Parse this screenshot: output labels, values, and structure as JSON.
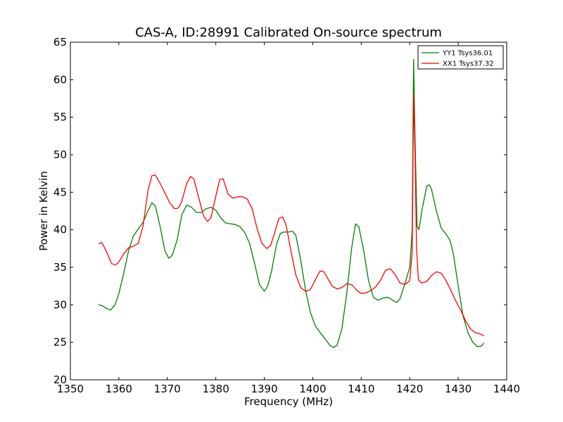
{
  "chart_data": {
    "type": "line",
    "title": "CAS-A, ID:28991 Calibrated On-source spectrum",
    "xlabel": "Frequency (MHz)",
    "ylabel": "Power in Kelvin",
    "xlim": [
      1350,
      1440
    ],
    "ylim": [
      20,
      65
    ],
    "xticks": [
      1350,
      1360,
      1370,
      1380,
      1390,
      1400,
      1410,
      1420,
      1430,
      1440
    ],
    "yticks": [
      20,
      25,
      30,
      35,
      40,
      45,
      50,
      55,
      60,
      65
    ],
    "grid": false,
    "legend_position": "top-right",
    "series": [
      {
        "name": "YY1 Tsys36.01",
        "color": "#008000",
        "points": [
          [
            1355.8,
            30.0
          ],
          [
            1356.5,
            29.9
          ],
          [
            1357.5,
            29.5
          ],
          [
            1358.3,
            29.3
          ],
          [
            1359.2,
            30.0
          ],
          [
            1360.0,
            31.5
          ],
          [
            1361.0,
            34.2
          ],
          [
            1362.0,
            37.2
          ],
          [
            1363.0,
            39.2
          ],
          [
            1364.0,
            40.1
          ],
          [
            1365.0,
            41.0
          ],
          [
            1366.0,
            42.5
          ],
          [
            1366.8,
            43.6
          ],
          [
            1367.5,
            43.2
          ],
          [
            1368.5,
            40.5
          ],
          [
            1369.5,
            37.2
          ],
          [
            1370.3,
            36.2
          ],
          [
            1371.0,
            36.6
          ],
          [
            1372.0,
            38.6
          ],
          [
            1373.0,
            42.0
          ],
          [
            1374.0,
            43.3
          ],
          [
            1375.0,
            43.0
          ],
          [
            1376.0,
            42.3
          ],
          [
            1377.0,
            42.3
          ],
          [
            1378.0,
            42.8
          ],
          [
            1379.0,
            43.0
          ],
          [
            1380.0,
            42.6
          ],
          [
            1381.0,
            41.6
          ],
          [
            1382.0,
            40.9
          ],
          [
            1383.0,
            40.8
          ],
          [
            1384.0,
            40.7
          ],
          [
            1385.0,
            40.4
          ],
          [
            1386.0,
            39.6
          ],
          [
            1387.0,
            38.1
          ],
          [
            1388.0,
            35.5
          ],
          [
            1389.0,
            32.7
          ],
          [
            1390.0,
            31.8
          ],
          [
            1390.7,
            32.5
          ],
          [
            1391.5,
            34.5
          ],
          [
            1392.5,
            38.0
          ],
          [
            1393.3,
            39.5
          ],
          [
            1394.0,
            39.7
          ],
          [
            1395.0,
            39.7
          ],
          [
            1395.8,
            39.8
          ],
          [
            1396.5,
            39.3
          ],
          [
            1397.5,
            36.0
          ],
          [
            1398.5,
            32.0
          ],
          [
            1399.5,
            29.0
          ],
          [
            1400.5,
            27.2
          ],
          [
            1401.5,
            26.3
          ],
          [
            1402.5,
            25.5
          ],
          [
            1403.5,
            24.6
          ],
          [
            1404.3,
            24.3
          ],
          [
            1405.0,
            24.6
          ],
          [
            1406.0,
            26.8
          ],
          [
            1407.0,
            31.5
          ],
          [
            1408.0,
            37.5
          ],
          [
            1408.8,
            40.8
          ],
          [
            1409.5,
            40.4
          ],
          [
            1410.5,
            37.2
          ],
          [
            1411.5,
            33.2
          ],
          [
            1412.5,
            31.0
          ],
          [
            1413.5,
            30.6
          ],
          [
            1414.5,
            30.9
          ],
          [
            1415.5,
            31.0
          ],
          [
            1416.5,
            30.6
          ],
          [
            1417.3,
            30.3
          ],
          [
            1418.0,
            30.8
          ],
          [
            1419.0,
            32.8
          ],
          [
            1420.0,
            35.0
          ],
          [
            1420.5,
            40.0
          ],
          [
            1420.8,
            62.7
          ],
          [
            1421.1,
            52.0
          ],
          [
            1421.5,
            40.5
          ],
          [
            1421.9,
            40.0
          ],
          [
            1422.5,
            42.5
          ],
          [
            1423.5,
            45.8
          ],
          [
            1424.0,
            46.0
          ],
          [
            1424.5,
            45.4
          ],
          [
            1425.5,
            42.5
          ],
          [
            1426.5,
            40.2
          ],
          [
            1427.5,
            39.4
          ],
          [
            1428.3,
            38.6
          ],
          [
            1429.0,
            36.8
          ],
          [
            1430.0,
            32.5
          ],
          [
            1431.0,
            28.5
          ],
          [
            1432.0,
            26.3
          ],
          [
            1433.0,
            25.0
          ],
          [
            1434.0,
            24.4
          ],
          [
            1434.8,
            24.5
          ],
          [
            1435.3,
            24.9
          ]
        ]
      },
      {
        "name": "XX1 Tsys37.32",
        "color": "#ff0000",
        "points": [
          [
            1355.8,
            38.1
          ],
          [
            1356.5,
            38.3
          ],
          [
            1357.5,
            37.0
          ],
          [
            1358.5,
            35.5
          ],
          [
            1359.3,
            35.3
          ],
          [
            1360.0,
            35.7
          ],
          [
            1361.0,
            36.8
          ],
          [
            1362.0,
            37.6
          ],
          [
            1363.0,
            37.8
          ],
          [
            1364.0,
            38.2
          ],
          [
            1365.0,
            40.5
          ],
          [
            1366.0,
            45.2
          ],
          [
            1366.8,
            47.2
          ],
          [
            1367.5,
            47.3
          ],
          [
            1368.5,
            46.2
          ],
          [
            1369.5,
            44.9
          ],
          [
            1370.5,
            43.6
          ],
          [
            1371.5,
            42.8
          ],
          [
            1372.3,
            42.9
          ],
          [
            1373.0,
            43.8
          ],
          [
            1374.0,
            46.2
          ],
          [
            1374.8,
            47.1
          ],
          [
            1375.5,
            46.7
          ],
          [
            1376.5,
            44.2
          ],
          [
            1377.5,
            41.8
          ],
          [
            1378.3,
            41.1
          ],
          [
            1379.0,
            41.6
          ],
          [
            1380.0,
            44.5
          ],
          [
            1380.8,
            46.7
          ],
          [
            1381.5,
            46.8
          ],
          [
            1382.5,
            44.8
          ],
          [
            1383.5,
            44.2
          ],
          [
            1384.5,
            44.4
          ],
          [
            1385.5,
            44.4
          ],
          [
            1386.5,
            44.1
          ],
          [
            1387.5,
            42.8
          ],
          [
            1388.5,
            40.2
          ],
          [
            1389.5,
            38.2
          ],
          [
            1390.5,
            37.5
          ],
          [
            1391.3,
            37.9
          ],
          [
            1392.0,
            39.3
          ],
          [
            1393.0,
            41.5
          ],
          [
            1393.8,
            41.7
          ],
          [
            1394.5,
            40.6
          ],
          [
            1395.5,
            37.2
          ],
          [
            1396.5,
            34.0
          ],
          [
            1397.5,
            32.3
          ],
          [
            1398.5,
            31.8
          ],
          [
            1399.5,
            32.0
          ],
          [
            1400.5,
            33.3
          ],
          [
            1401.5,
            34.5
          ],
          [
            1402.3,
            34.4
          ],
          [
            1403.0,
            33.6
          ],
          [
            1404.0,
            32.5
          ],
          [
            1405.0,
            32.1
          ],
          [
            1406.0,
            32.3
          ],
          [
            1407.0,
            32.8
          ],
          [
            1408.0,
            32.7
          ],
          [
            1409.0,
            32.0
          ],
          [
            1410.0,
            31.5
          ],
          [
            1411.0,
            31.6
          ],
          [
            1412.0,
            31.9
          ],
          [
            1413.0,
            32.4
          ],
          [
            1414.0,
            33.3
          ],
          [
            1415.0,
            34.6
          ],
          [
            1416.0,
            34.8
          ],
          [
            1417.0,
            34.0
          ],
          [
            1418.0,
            32.9
          ],
          [
            1419.0,
            32.7
          ],
          [
            1420.0,
            33.2
          ],
          [
            1420.5,
            37.0
          ],
          [
            1420.8,
            58.0
          ],
          [
            1421.1,
            50.0
          ],
          [
            1421.4,
            37.5
          ],
          [
            1421.8,
            33.3
          ],
          [
            1422.5,
            32.9
          ],
          [
            1423.5,
            33.1
          ],
          [
            1424.5,
            33.9
          ],
          [
            1425.5,
            34.4
          ],
          [
            1426.5,
            34.2
          ],
          [
            1427.5,
            33.2
          ],
          [
            1428.5,
            31.9
          ],
          [
            1429.5,
            30.5
          ],
          [
            1430.5,
            29.3
          ],
          [
            1431.5,
            27.9
          ],
          [
            1432.5,
            26.8
          ],
          [
            1433.5,
            26.3
          ],
          [
            1434.5,
            26.1
          ],
          [
            1435.3,
            25.9
          ]
        ]
      }
    ]
  }
}
